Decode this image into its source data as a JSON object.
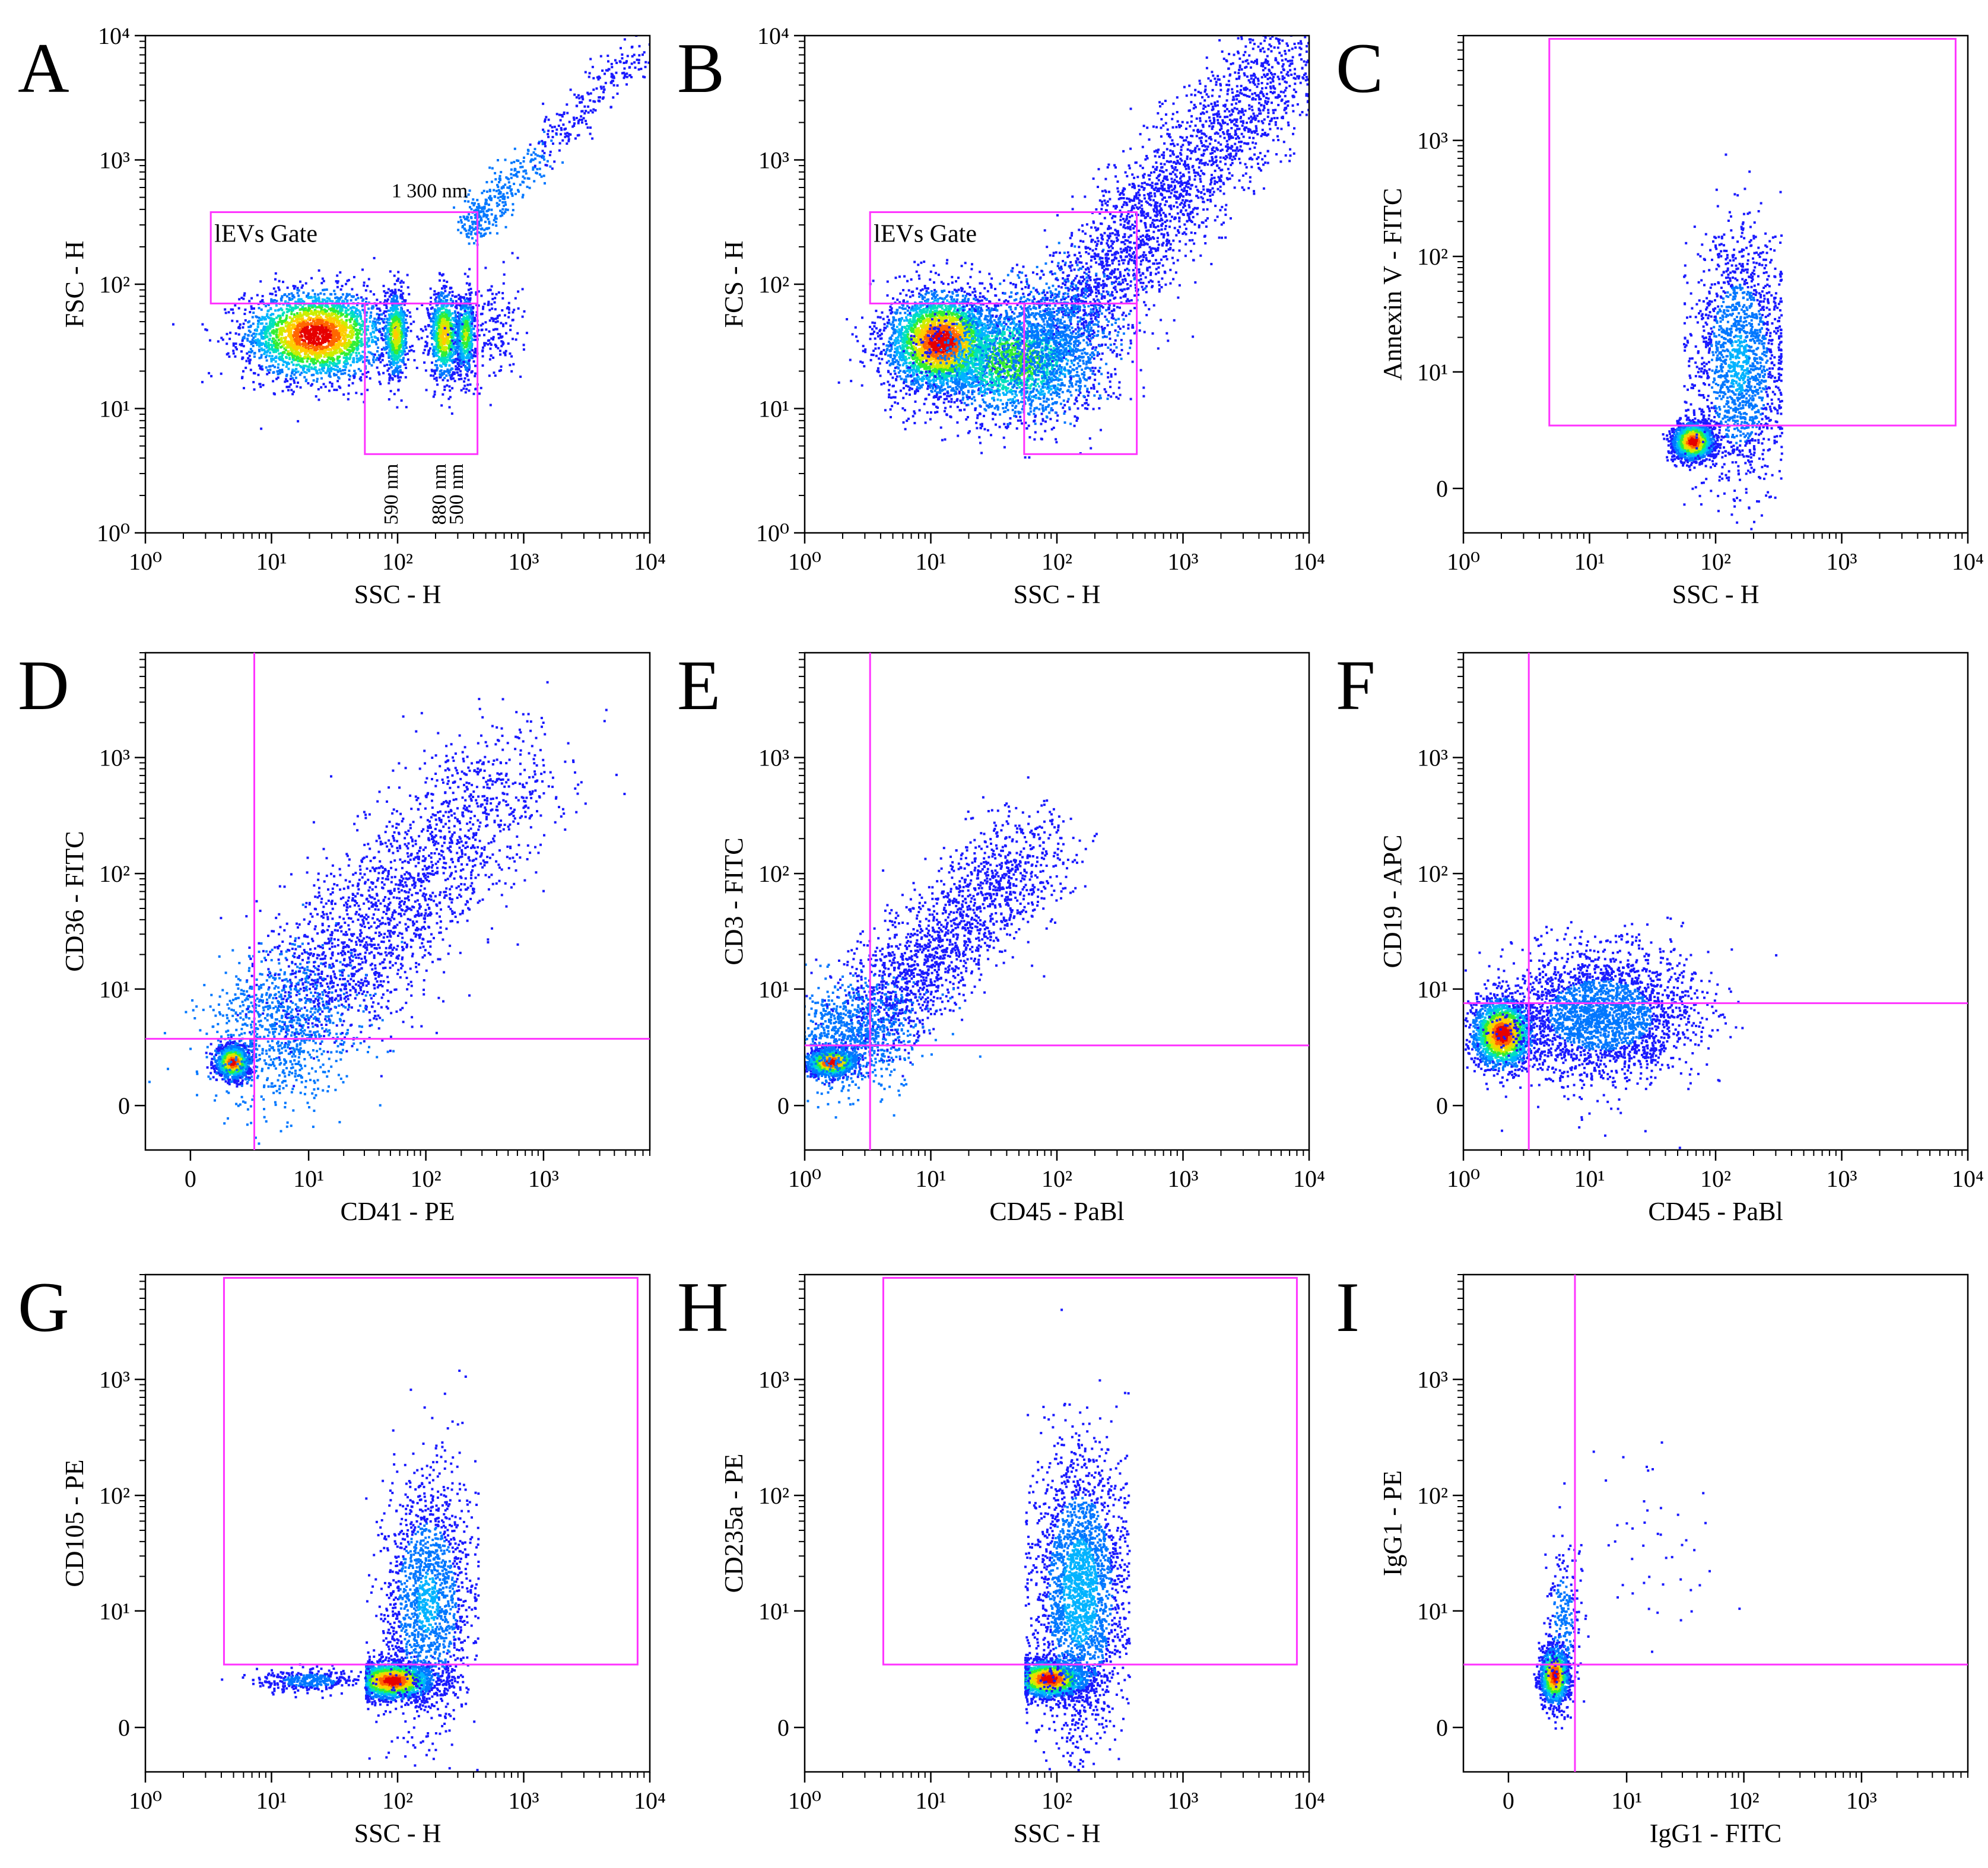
{
  "figure": {
    "colors": {
      "gate": "#ff33ff",
      "axis": "#000000",
      "density": [
        "#1a1aff",
        "#0077ff",
        "#00b3ff",
        "#00e0c0",
        "#33ee33",
        "#ccee00",
        "#ffcc00",
        "#ff6600",
        "#e60000"
      ]
    }
  },
  "chart_data": [
    {
      "id": "A",
      "type": "scatter",
      "panel_label": "A",
      "xlabel": "SSC - H",
      "ylabel": "FSC - H",
      "x_scale": "log",
      "y_scale": "log",
      "xlim": [
        1,
        10000
      ],
      "ylim": [
        1,
        10000
      ],
      "x_ticks": [
        1,
        10,
        100,
        1000,
        10000
      ],
      "y_ticks": [
        1,
        10,
        100,
        1000,
        10000
      ],
      "gates": [
        {
          "type": "rect",
          "label": "lEVs Gate",
          "x": [
            3.3,
            430
          ],
          "y": [
            70,
            380
          ]
        },
        {
          "type": "rect",
          "label": "",
          "x": [
            55,
            430
          ],
          "y": [
            4.3,
            70
          ]
        }
      ],
      "annotations": [
        {
          "text": "1 300 nm",
          "x": 360,
          "y": 500,
          "anchor": "end",
          "rotate": false
        },
        {
          "text": "590 nm",
          "x": 100,
          "y": 3.6,
          "anchor": "end",
          "rotate": true
        },
        {
          "text": "880 nm",
          "x": 240,
          "y": 3.6,
          "anchor": "end",
          "rotate": true
        },
        {
          "text": "500 nm",
          "x": 330,
          "y": 3.6,
          "anchor": "end",
          "rotate": true
        }
      ],
      "populations": [
        {
          "cx": 22,
          "cy": 40,
          "sx": 0.28,
          "sy": 0.18,
          "n": 2600,
          "hot": 1.0
        },
        {
          "cx": 95,
          "cy": 40,
          "sx": 0.05,
          "sy": 0.17,
          "n": 650,
          "hot": 0.7
        },
        {
          "cx": 230,
          "cy": 40,
          "sx": 0.06,
          "sy": 0.18,
          "n": 850,
          "hot": 0.75
        },
        {
          "cx": 340,
          "cy": 40,
          "sx": 0.04,
          "sy": 0.16,
          "n": 500,
          "hot": 0.6
        },
        {
          "cx": 550,
          "cy": 45,
          "sx": 0.12,
          "sy": 0.22,
          "n": 180,
          "hot": 0.0
        },
        {
          "diag": true,
          "x0": 380,
          "y0": 300,
          "x1": 9000,
          "y1": 9000,
          "spread": 0.08,
          "n": 550,
          "hot": 0.55
        }
      ]
    },
    {
      "id": "B",
      "type": "scatter",
      "panel_label": "B",
      "xlabel": "SSC - H",
      "ylabel": "FCS - H",
      "x_scale": "log",
      "y_scale": "log",
      "xlim": [
        1,
        10000
      ],
      "ylim": [
        1,
        10000
      ],
      "x_ticks": [
        1,
        10,
        100,
        1000,
        10000
      ],
      "y_ticks": [
        1,
        10,
        100,
        1000,
        10000
      ],
      "gates": [
        {
          "type": "rect",
          "label": "lEVs Gate",
          "x": [
            3.3,
            430
          ],
          "y": [
            70,
            380
          ]
        },
        {
          "type": "rect",
          "label": "",
          "x": [
            55,
            430
          ],
          "y": [
            4.3,
            70
          ]
        }
      ],
      "annotations": [],
      "populations": [
        {
          "cx": 12,
          "cy": 35,
          "sx": 0.22,
          "sy": 0.2,
          "n": 3200,
          "hot": 1.0
        },
        {
          "cx": 45,
          "cy": 25,
          "sx": 0.35,
          "sy": 0.25,
          "n": 1900,
          "hot": 0.55
        },
        {
          "diag": true,
          "x0": 60,
          "y0": 25,
          "x1": 9000,
          "y1": 9500,
          "spread": 0.22,
          "n": 3400,
          "hot": 0.35
        }
      ]
    },
    {
      "id": "C",
      "type": "scatter",
      "panel_label": "C",
      "xlabel": "SSC - H",
      "ylabel": "Annexin V - FITC",
      "x_scale": "log",
      "y_scale": "biex",
      "xlim": [
        1,
        10000
      ],
      "ylim": [
        -2,
        8000
      ],
      "x_ticks": [
        1,
        10,
        100,
        1000,
        10000
      ],
      "y_ticks": [
        0,
        10,
        100,
        1000
      ],
      "gates": [
        {
          "type": "rect",
          "label": "",
          "x": [
            4.8,
            8000
          ],
          "y": [
            3.2,
            7500
          ]
        }
      ],
      "annotations": [],
      "populations": [
        {
          "cx": 65,
          "cy": 2.2,
          "sx": 0.08,
          "sy": 0.08,
          "n": 1800,
          "hot": 1.0
        },
        {
          "cx": 150,
          "cy": 12,
          "sx": 0.18,
          "sy": 0.55,
          "n": 1700,
          "hot": 0.25,
          "xclip": [
            55,
            330
          ]
        }
      ]
    },
    {
      "id": "D",
      "type": "scatter",
      "panel_label": "D",
      "xlabel": "CD41 - PE",
      "ylabel": "CD36 - FITC",
      "x_scale": "biex",
      "y_scale": "biex",
      "xlim": [
        -2,
        8000
      ],
      "ylim": [
        -2,
        8000
      ],
      "x_ticks": [
        0,
        10,
        100,
        1000
      ],
      "y_ticks": [
        0,
        10,
        100,
        1000
      ],
      "gates": [
        {
          "type": "quad",
          "x": 3.2,
          "y": 3.5
        }
      ],
      "annotations": [],
      "populations": [
        {
          "cx": 1.8,
          "cy": 2.0,
          "sx": 0.07,
          "sy": 0.07,
          "n": 1300,
          "hot": 1.0
        },
        {
          "diag": true,
          "x0": 4,
          "y0": 3,
          "x1": 600,
          "y1": 900,
          "spread": 0.3,
          "n": 2900,
          "hot": 0.35
        }
      ]
    },
    {
      "id": "E",
      "type": "scatter",
      "panel_label": "E",
      "xlabel": "CD45 - PaBl",
      "ylabel": "CD3 - FITC",
      "x_scale": "log",
      "y_scale": "biex",
      "xlim": [
        1,
        10000
      ],
      "ylim": [
        -2,
        8000
      ],
      "x_ticks": [
        1,
        10,
        100,
        1000,
        10000
      ],
      "y_ticks": [
        0,
        10,
        100,
        1000
      ],
      "gates": [
        {
          "type": "quad",
          "x": 3.3,
          "y": 3.0
        }
      ],
      "annotations": [],
      "populations": [
        {
          "cx": 1.6,
          "cy": 2.0,
          "sx": 0.1,
          "sy": 0.06,
          "n": 1200,
          "hot": 1.0
        },
        {
          "diag": true,
          "x0": 2,
          "y0": 3,
          "x1": 70,
          "y1": 200,
          "spread": 0.22,
          "n": 2600,
          "hot": 0.35
        }
      ]
    },
    {
      "id": "F",
      "type": "scatter",
      "panel_label": "F",
      "xlabel": "CD45 - PaBl",
      "ylabel": "CD19 - APC",
      "x_scale": "log",
      "y_scale": "biex",
      "xlim": [
        1,
        10000
      ],
      "ylim": [
        -2,
        8000
      ],
      "x_ticks": [
        1,
        10,
        100,
        1000,
        10000
      ],
      "y_ticks": [
        0,
        10,
        100,
        1000
      ],
      "gates": [
        {
          "type": "quad",
          "x": 3.3,
          "y": 7.5
        }
      ],
      "annotations": [],
      "populations": [
        {
          "cx": 2.0,
          "cy": 4.0,
          "sx": 0.12,
          "sy": 0.15,
          "n": 1900,
          "hot": 1.0
        },
        {
          "cx": 12,
          "cy": 6,
          "sx": 0.38,
          "sy": 0.28,
          "n": 2600,
          "hot": 0.2
        }
      ]
    },
    {
      "id": "G",
      "type": "scatter",
      "panel_label": "G",
      "xlabel": "SSC - H",
      "ylabel": "CD105 - PE",
      "x_scale": "log",
      "y_scale": "biex",
      "xlim": [
        1,
        10000
      ],
      "ylim": [
        -2,
        8000
      ],
      "x_ticks": [
        1,
        10,
        100,
        1000,
        10000
      ],
      "y_ticks": [
        0,
        10,
        100,
        1000
      ],
      "gates": [
        {
          "type": "rect",
          "label": "",
          "x": [
            4.2,
            8000
          ],
          "y": [
            3.2,
            7500
          ]
        }
      ],
      "annotations": [],
      "populations": [
        {
          "cx": 90,
          "cy": 2.2,
          "sx": 0.16,
          "sy": 0.08,
          "n": 2000,
          "hot": 1.0,
          "xclip": [
            55,
            430
          ]
        },
        {
          "cx": 20,
          "cy": 2.2,
          "sx": 0.2,
          "sy": 0.05,
          "n": 350,
          "hot": 0.2
        },
        {
          "cx": 170,
          "cy": 12,
          "sx": 0.18,
          "sy": 0.55,
          "n": 1600,
          "hot": 0.25,
          "xclip": [
            55,
            430
          ]
        }
      ]
    },
    {
      "id": "H",
      "type": "scatter",
      "panel_label": "H",
      "xlabel": "SSC - H",
      "ylabel": "CD235a - PE",
      "x_scale": "log",
      "y_scale": "biex",
      "xlim": [
        1,
        10000
      ],
      "ylim": [
        -2,
        8000
      ],
      "x_ticks": [
        1,
        10,
        100,
        1000,
        10000
      ],
      "y_ticks": [
        0,
        10,
        100,
        1000
      ],
      "gates": [
        {
          "type": "rect",
          "label": "",
          "x": [
            4.2,
            8000
          ],
          "y": [
            3.2,
            7500
          ]
        }
      ],
      "annotations": [],
      "populations": [
        {
          "cx": 85,
          "cy": 2.3,
          "sx": 0.15,
          "sy": 0.08,
          "n": 2000,
          "hot": 1.0,
          "xclip": [
            55,
            370
          ]
        },
        {
          "cx": 150,
          "cy": 15,
          "sx": 0.18,
          "sy": 0.6,
          "n": 2400,
          "hot": 0.3,
          "xclip": [
            55,
            370
          ]
        }
      ]
    },
    {
      "id": "I",
      "type": "scatter",
      "panel_label": "I",
      "xlabel": "IgG1 - FITC",
      "ylabel": "IgG1 - PE",
      "x_scale": "biex",
      "y_scale": "biex",
      "xlim": [
        -2,
        8000
      ],
      "ylim": [
        -2,
        8000
      ],
      "x_ticks": [
        0,
        10,
        100,
        1000
      ],
      "y_ticks": [
        0,
        10,
        100,
        1000
      ],
      "gates": [
        {
          "type": "quad",
          "x": 3.4,
          "y": 3.2
        }
      ],
      "annotations": [],
      "populations": [
        {
          "cx": 2.0,
          "cy": 2.5,
          "sx": 0.06,
          "sy": 0.12,
          "n": 1300,
          "hot": 1.0
        },
        {
          "cx": 2.5,
          "cy": 8,
          "sx": 0.08,
          "sy": 0.35,
          "n": 250,
          "hot": 0.2
        },
        {
          "cx": 15,
          "cy": 30,
          "sx": 0.35,
          "sy": 0.45,
          "n": 45,
          "hot": 0.0
        }
      ]
    }
  ]
}
